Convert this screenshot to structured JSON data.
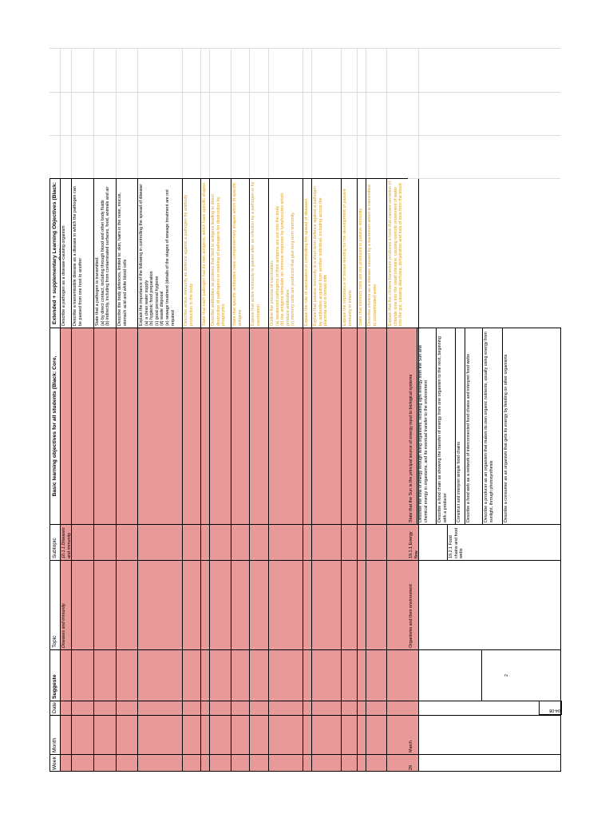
{
  "headers": {
    "week": "Week",
    "month": "Month",
    "date": "Date",
    "suggested": "Suggeste",
    "topic": "Topic",
    "subtopic": "Subtopic",
    "basic": "Basic learning objectives for all students (Black: Core,",
    "extended": "Extended + supplementary Learning Objectives (Black: Core,"
  },
  "section1": {
    "topic": "Diseases and immunity",
    "subtopic": "10.1.1 Diseases and immunity",
    "extended_objectives": [
      {
        "text": "Describe a pathogen as a disease-causing organism",
        "style": "core"
      },
      {
        "text": "Describe a transmissible disease as a disease in which the pathogen can be passed from one host to another",
        "style": "core"
      },
      {
        "text": "State that a pathogen is transmitted:\n(a) by direct contact, including through blood and other body fluids\n(b) indirectly, including from contaminated surfaces, food, animals and air",
        "style": "core"
      },
      {
        "text": "Describe the body defences, limited to: skin, hairs in the nose, mucus, stomach acid and white blood cells",
        "style": "core"
      },
      {
        "text": "Explain the importance of the following in controlling the spread of disease:\n(a) a clean water supply\n(b) hygienic food preparation\n(c) good personal hygiene\n(d) waste disposal\n(e) sewage treatment (details of the stages of sewage treatment are not required",
        "style": "core"
      },
      {
        "text": "Describe active immunity as defence against a pathogen by antibody production in the body",
        "style": "supplement"
      },
      {
        "text": "State that each pathogen has its own antigens, which have specific shapes",
        "style": "supplement"
      },
      {
        "text": "Describe antibodies as proteins that bind to antigens leading to direct destruction of pathogens or marking of pathogens for destruction by phagocytes",
        "style": "supplement"
      },
      {
        "text": "State that specific antibodies have complementary shapes which fit specific antigens",
        "style": "supplement"
      },
      {
        "text": "Explain that active immunity is gained after an infection by a pathogen or by vaccination",
        "style": "supplement"
      },
      {
        "text": "Outline the process of vaccination:\n(a) weakened pathogens or their antigens are put into the body\n(b) the antigens stimulate an immune response by lymphocytes which produce antibodies\n(c) memory cells are produced that give long-term immunity",
        "style": "supplement"
      },
      {
        "text": "Explain the role of vaccination in controlling the spread of diseases",
        "style": "supplement"
      },
      {
        "text": "Explain that passive immunity is a short-term defence against a pathogen by antibodies acquired from another individual, including across the placenta and in breast milk",
        "style": "supplement"
      },
      {
        "text": "Explain the importance of breast-feeding for the development of passive immunity in infants",
        "style": "supplement"
      },
      {
        "text": "State that memory cells are not produced in passive immunity",
        "style": "supplement"
      },
      {
        "text": "Describe cholera as a disease caused by a bacterium which is transmitted in contaminated water",
        "style": "supplement"
      },
      {
        "text": "Explain that the cholera bacterium produces a toxin that causes secretion of chloride ions into the small intestine, causing osmotic movement of water into the gut, causing diarrhoea, dehydration and loss of ions from the blood",
        "style": "supplement"
      }
    ]
  },
  "section2": {
    "week": "29",
    "month": "March",
    "date_range": "04-08",
    "suggested": "2",
    "topic": "Organisms and their environment",
    "subtopics": [
      "19.1.1 Energy flow",
      "19.2.1 Food chains and food webs"
    ],
    "basic_objectives": [
      "State that the Sun is the principal source of energy input to biological systems",
      "Describe the flow of energy through living organisms, including light energy from the Sun and chemical energy in organisms, and its eventual transfer to the environment",
      "Describe a food chain as showing the transfer of energy from one organism to the next, beginning with a producer",
      "Construct and interpret simple food chains",
      "Describe a food web as a network of interconnected food chains and interpret food webs",
      "Describe a producer as an organism that makes its own organic nutrients, usually using energy from sunlight, through photosynthesis",
      "Describe a consumer as an organism that gets its energy by feeding on other organisms"
    ]
  }
}
